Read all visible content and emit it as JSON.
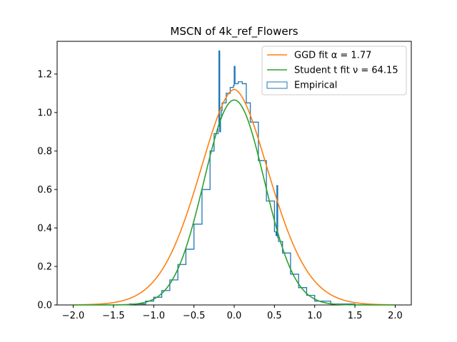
{
  "chart_data": {
    "type": "line",
    "title": "MSCN of 4k_ref_Flowers",
    "xlabel": "",
    "ylabel": "",
    "xlim": [
      -2.2,
      2.2
    ],
    "ylim": [
      0,
      1.37
    ],
    "xticks": [
      -2.0,
      -1.5,
      -1.0,
      -0.5,
      0.0,
      0.5,
      1.0,
      1.5,
      2.0
    ],
    "xtick_labels": [
      "−2.0",
      "−1.5",
      "−1.0",
      "−0.5",
      "0.0",
      "0.5",
      "1.0",
      "1.5",
      "2.0"
    ],
    "yticks": [
      0.0,
      0.2,
      0.4,
      0.6,
      0.8,
      1.0,
      1.2
    ],
    "ytick_labels": [
      "0.0",
      "0.2",
      "0.4",
      "0.6",
      "0.8",
      "1.0",
      "1.2"
    ],
    "grid": false,
    "legend_position": "top-right",
    "series": [
      {
        "name": "GGD fit α = 1.77",
        "kind": "curve",
        "color": "#ff7f0e",
        "peak": 1.12,
        "alpha": 1.77,
        "scale": 0.64,
        "x_range": [
          -2.0,
          2.0
        ]
      },
      {
        "name": "Student t fit ν = 64.15",
        "kind": "curve",
        "color": "#2ca02c",
        "peak": 1.065,
        "sigma": 0.375,
        "x_range": [
          -2.0,
          2.0
        ]
      },
      {
        "name": "Empirical",
        "kind": "step-histogram",
        "color": "#1f77b4",
        "x": [
          -2.0,
          -1.6,
          -1.3,
          -1.1,
          -1.0,
          -0.9,
          -0.8,
          -0.7,
          -0.6,
          -0.5,
          -0.4,
          -0.3,
          -0.25,
          -0.2,
          -0.19,
          -0.18,
          -0.17,
          -0.16,
          -0.15,
          -0.1,
          -0.05,
          -0.01,
          0.0,
          0.01,
          0.05,
          0.1,
          0.15,
          0.2,
          0.3,
          0.4,
          0.5,
          0.52,
          0.53,
          0.54,
          0.55,
          0.6,
          0.7,
          0.8,
          0.9,
          1.0,
          1.2,
          1.5,
          2.0
        ],
        "y": [
          0.0,
          0.0,
          0.005,
          0.02,
          0.04,
          0.075,
          0.13,
          0.21,
          0.29,
          0.42,
          0.6,
          0.8,
          0.89,
          0.93,
          1.32,
          0.9,
          0.97,
          1.01,
          1.05,
          1.1,
          1.13,
          1.14,
          1.24,
          1.15,
          1.16,
          1.15,
          1.05,
          0.95,
          0.75,
          0.54,
          0.38,
          0.36,
          0.62,
          0.35,
          0.33,
          0.27,
          0.16,
          0.09,
          0.05,
          0.02,
          0.005,
          0.0,
          0.0
        ]
      }
    ]
  }
}
